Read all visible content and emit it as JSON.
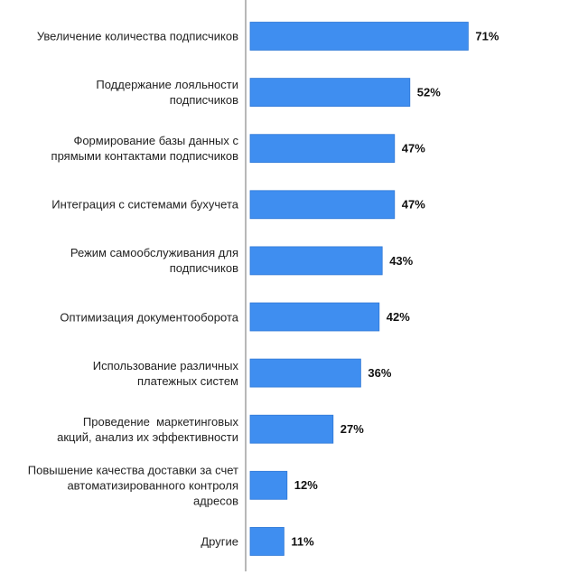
{
  "chart_data": {
    "type": "bar",
    "orientation": "horizontal",
    "categories": [
      "Увеличение количества подписчиков",
      "Поддержание лояльности\nподписчиков",
      "Формирование базы данных с\nпрямыми контактами подписчиков",
      "Интеграция с системами бухучета",
      "Режим самообслуживания для\nподписчиков",
      "Оптимизация документооборота",
      "Использование различных\nплатежных систем",
      "Проведение  маркетинговых\nакций, анализ их эффективности",
      "Повышение качества доставки за счет\nавтоматизированного контроля\nадресов",
      "Другие"
    ],
    "values": [
      71,
      52,
      47,
      47,
      43,
      42,
      36,
      27,
      12,
      11
    ],
    "value_labels": [
      "71%",
      "52%",
      "47%",
      "47%",
      "43%",
      "42%",
      "36%",
      "27%",
      "12%",
      "11%"
    ],
    "color": "#3f8ef0"
  }
}
